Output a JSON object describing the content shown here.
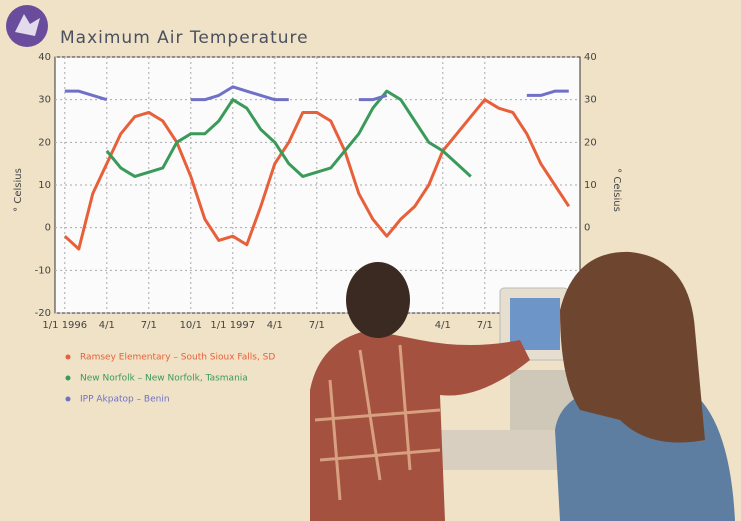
{
  "chart_data": {
    "type": "line",
    "title": "Maximum Air Temperature",
    "ylabel": "° Celsius",
    "xlim": [
      -0.7,
      36.8
    ],
    "xticks": [
      {
        "value": 0,
        "label": "1/1 1996"
      },
      {
        "value": 3,
        "label": "4/1"
      },
      {
        "value": 6,
        "label": "7/1"
      },
      {
        "value": 9,
        "label": "10/1"
      },
      {
        "value": 12,
        "label": "1/1 1997"
      },
      {
        "value": 15,
        "label": "4/1"
      },
      {
        "value": 18,
        "label": "7/1"
      },
      {
        "value": 27,
        "label": "4/1"
      },
      {
        "value": 30,
        "label": "7/1"
      }
    ],
    "ylim": [
      -20,
      40
    ],
    "yticks": [
      -20,
      -10,
      0,
      10,
      20,
      30,
      40
    ],
    "grid": true,
    "series": [
      {
        "name": "Ramsey Elementary – South Sioux Falls, SD",
        "color": "#e8603a",
        "x": [
          0,
          1,
          2,
          3,
          4,
          5,
          6,
          7,
          8,
          9,
          10,
          11,
          12,
          13,
          14,
          15,
          16,
          17,
          18,
          19,
          20,
          21,
          22,
          23,
          24,
          25,
          26,
          27,
          28,
          29,
          30,
          31,
          32,
          33,
          34,
          35,
          36
        ],
        "values": [
          -2,
          -5,
          8,
          15,
          22,
          26,
          27,
          25,
          20,
          12,
          2,
          -3,
          -2,
          -4,
          5,
          15,
          20,
          27,
          27,
          25,
          18,
          8,
          2,
          -2,
          2,
          5,
          10,
          18,
          22,
          26,
          30,
          28,
          27,
          22,
          15,
          10,
          5
        ]
      },
      {
        "name": "New Norfolk – New Norfolk, Tasmania",
        "color": "#3a9a5a",
        "x": [
          3,
          4,
          5,
          6,
          7,
          8,
          9,
          10,
          11,
          12,
          13,
          14,
          15,
          16,
          17,
          18,
          19,
          20,
          21,
          22,
          23,
          24,
          25,
          26,
          27,
          28,
          29
        ],
        "values": [
          18,
          14,
          12,
          13,
          14,
          20,
          22,
          22,
          25,
          30,
          28,
          23,
          20,
          15,
          12,
          13,
          14,
          18,
          22,
          28,
          32,
          30,
          25,
          20,
          18,
          15,
          12
        ]
      },
      {
        "name": "IPP Akpatop – Benin",
        "color": "#7070c8",
        "x": [
          0,
          1,
          2,
          3,
          3.5,
          9,
          10,
          11,
          12,
          13,
          14,
          15,
          16,
          16.5,
          21,
          22,
          23,
          23.5,
          33,
          34,
          35,
          36
        ],
        "values": [
          32,
          32,
          31,
          30,
          null,
          30,
          30,
          31,
          33,
          32,
          31,
          30,
          30,
          null,
          30,
          30,
          31,
          null,
          31,
          31,
          32,
          32
        ]
      }
    ]
  }
}
